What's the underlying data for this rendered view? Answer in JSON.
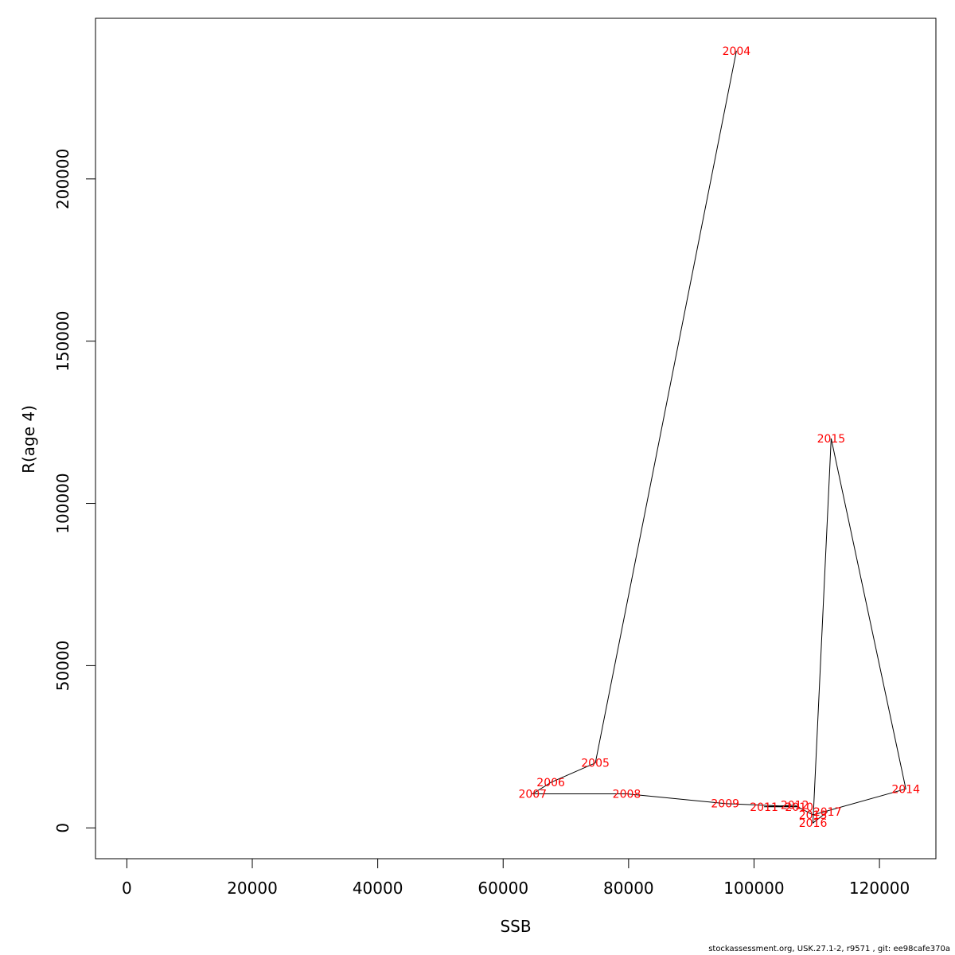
{
  "chart_data": {
    "type": "line",
    "xlabel": "SSB",
    "ylabel": "R(age 4)",
    "xlim": [
      -5000,
      129000
    ],
    "ylim": [
      -9500,
      249500
    ],
    "x_ticks": [
      0,
      20000,
      40000,
      60000,
      80000,
      100000,
      120000
    ],
    "y_ticks": [
      0,
      50000,
      100000,
      150000,
      200000
    ],
    "grid": false,
    "line_color": "#000000",
    "label_color": "#ff0000",
    "points": [
      {
        "year": "2004",
        "ssb": 97200,
        "r": 239500
      },
      {
        "year": "2005",
        "ssb": 74700,
        "r": 20000
      },
      {
        "year": "2006",
        "ssb": 67600,
        "r": 14000
      },
      {
        "year": "2007",
        "ssb": 64700,
        "r": 10500
      },
      {
        "year": "2008",
        "ssb": 79700,
        "r": 10500
      },
      {
        "year": "2009",
        "ssb": 95400,
        "r": 7500
      },
      {
        "year": "2010",
        "ssb": 107200,
        "r": 6500
      },
      {
        "year": "2011",
        "ssb": 101600,
        "r": 6500
      },
      {
        "year": "2012",
        "ssb": 106500,
        "r": 7000
      },
      {
        "year": "2013",
        "ssb": 109400,
        "r": 4000
      },
      {
        "year": "2014",
        "ssb": 124200,
        "r": 12000
      },
      {
        "year": "2015",
        "ssb": 112300,
        "r": 120000
      },
      {
        "year": "2016",
        "ssb": 109400,
        "r": 1500
      },
      {
        "year": "2017",
        "ssb": 111700,
        "r": 5000
      }
    ]
  },
  "footer": "stockassessment.org, USK.27.1-2, r9571 , git: ee98cafe370a"
}
